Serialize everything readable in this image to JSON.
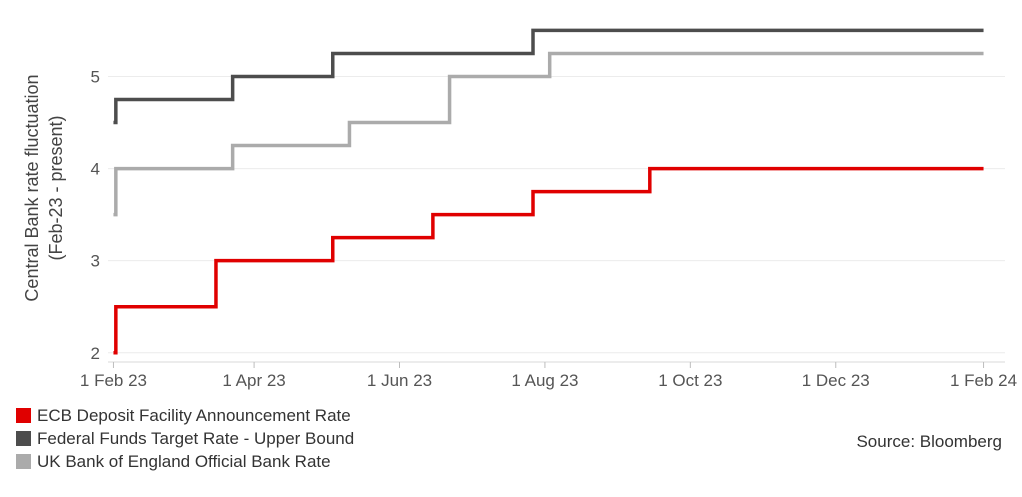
{
  "chart_data": {
    "type": "line",
    "step": true,
    "ylabel_line1": "Central Bank rate fluctuation",
    "ylabel_line2": "(Feb-23 - present)",
    "yticks": [
      2,
      3,
      4,
      5
    ],
    "ylim": [
      1.9,
      5.7
    ],
    "xticks": [
      {
        "date": "2023-02-01",
        "label": "1 Feb 23"
      },
      {
        "date": "2023-04-01",
        "label": "1 Apr 23"
      },
      {
        "date": "2023-06-01",
        "label": "1 Jun 23"
      },
      {
        "date": "2023-08-01",
        "label": "1 Aug 23"
      },
      {
        "date": "2023-10-01",
        "label": "1 Oct 23"
      },
      {
        "date": "2023-12-01",
        "label": "1 Dec 23"
      },
      {
        "date": "2024-02-01",
        "label": "1 Feb 24"
      }
    ],
    "xlim": [
      "2023-01-23",
      "2024-02-10"
    ],
    "grid": "horizontal",
    "legend_position": "bottom-left",
    "series": [
      {
        "name": "ECB Deposit Facility Announcement Rate",
        "color": "#e00000",
        "steps": [
          {
            "date": "2023-02-01",
            "value": 2.0
          },
          {
            "date": "2023-02-02",
            "value": 2.5
          },
          {
            "date": "2023-03-16",
            "value": 3.0
          },
          {
            "date": "2023-05-04",
            "value": 3.25
          },
          {
            "date": "2023-06-15",
            "value": 3.5
          },
          {
            "date": "2023-07-27",
            "value": 3.75
          },
          {
            "date": "2023-09-14",
            "value": 4.0
          },
          {
            "date": "2024-02-01",
            "value": 4.0
          }
        ]
      },
      {
        "name": "Federal Funds Target Rate - Upper Bound",
        "color": "#4d4d4d",
        "steps": [
          {
            "date": "2023-02-01",
            "value": 4.5
          },
          {
            "date": "2023-02-02",
            "value": 4.75
          },
          {
            "date": "2023-03-23",
            "value": 5.0
          },
          {
            "date": "2023-05-04",
            "value": 5.25
          },
          {
            "date": "2023-07-27",
            "value": 5.5
          },
          {
            "date": "2024-02-01",
            "value": 5.5
          }
        ]
      },
      {
        "name": "UK Bank of England Official Bank Rate",
        "color": "#ababab",
        "steps": [
          {
            "date": "2023-02-01",
            "value": 3.5
          },
          {
            "date": "2023-02-02",
            "value": 4.0
          },
          {
            "date": "2023-03-23",
            "value": 4.25
          },
          {
            "date": "2023-05-11",
            "value": 4.5
          },
          {
            "date": "2023-06-22",
            "value": 5.0
          },
          {
            "date": "2023-08-03",
            "value": 5.25
          },
          {
            "date": "2024-02-01",
            "value": 5.25
          }
        ]
      }
    ]
  },
  "source_text": "Source: Bloomberg"
}
